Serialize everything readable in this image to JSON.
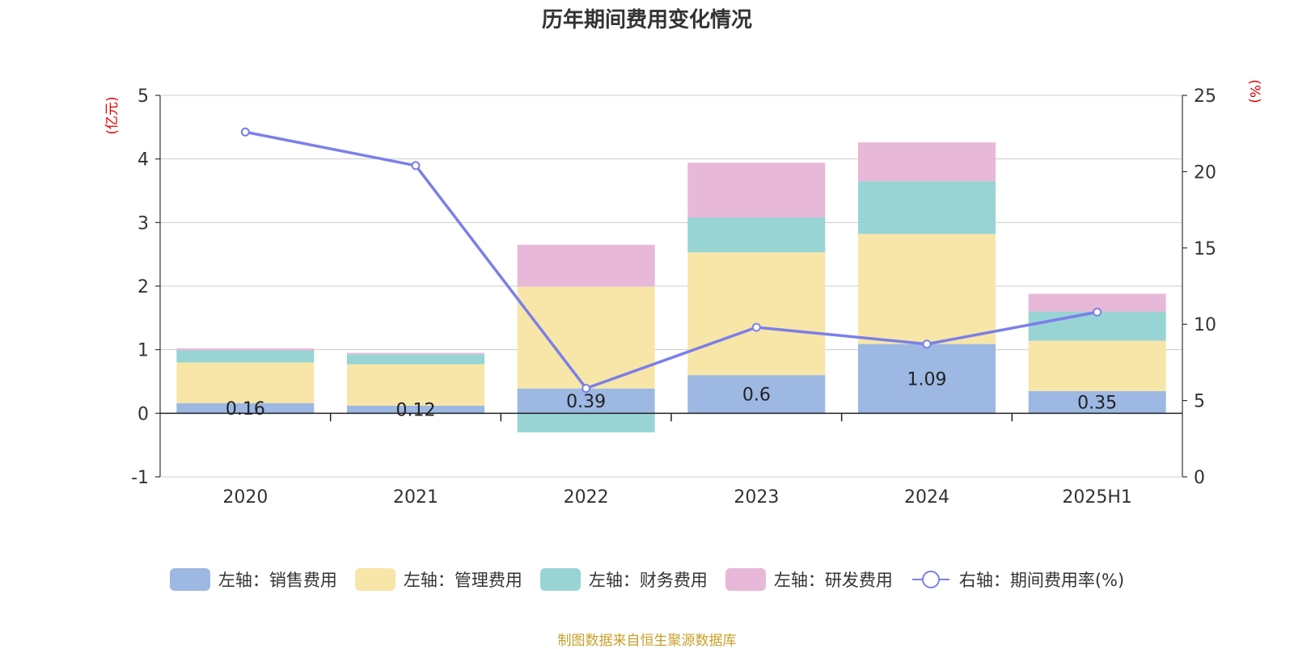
{
  "chart_data": {
    "type": "bar",
    "title": "历年期间费用变化情况",
    "categories": [
      "2020",
      "2021",
      "2022",
      "2023",
      "2024",
      "2025H1"
    ],
    "left_axis": {
      "unit_label": "(亿元)",
      "ylim": [
        -1,
        5
      ],
      "ticks": [
        "-1",
        "0",
        "1",
        "2",
        "3",
        "4",
        "5"
      ]
    },
    "right_axis": {
      "unit_label": "(%)",
      "ylim": [
        0,
        25
      ],
      "ticks": [
        "0",
        "5",
        "10",
        "15",
        "20",
        "25"
      ]
    },
    "stacked": true,
    "grid": true,
    "legend_position": "bottom",
    "series": [
      {
        "name": "左轴：销售费用",
        "axis": "left",
        "type": "bar",
        "color": "#9db8e2",
        "values": [
          0.16,
          0.12,
          0.39,
          0.6,
          1.09,
          0.35
        ],
        "data_labels": [
          "0.16",
          "0.12",
          "0.39",
          "0.6",
          "1.09",
          "0.35"
        ]
      },
      {
        "name": "左轴：管理费用",
        "axis": "left",
        "type": "bar",
        "color": "#f8e6a8",
        "values": [
          0.64,
          0.65,
          1.6,
          1.93,
          1.73,
          0.79
        ]
      },
      {
        "name": "左轴：财务费用",
        "axis": "left",
        "type": "bar",
        "color": "#98d4d4",
        "values": [
          0.19,
          0.16,
          -0.3,
          0.55,
          0.83,
          0.46
        ]
      },
      {
        "name": "左轴：研发费用",
        "axis": "left",
        "type": "bar",
        "color": "#e8b8d8",
        "values": [
          0.03,
          0.02,
          0.66,
          0.86,
          0.61,
          0.28
        ]
      },
      {
        "name": "右轴：期间费用率(%)",
        "axis": "right",
        "type": "line",
        "color": "#7b7fe8",
        "values": [
          22.6,
          20.4,
          5.8,
          9.8,
          8.7,
          10.8
        ]
      }
    ]
  },
  "source_note": "制图数据来自恒生聚源数据库"
}
